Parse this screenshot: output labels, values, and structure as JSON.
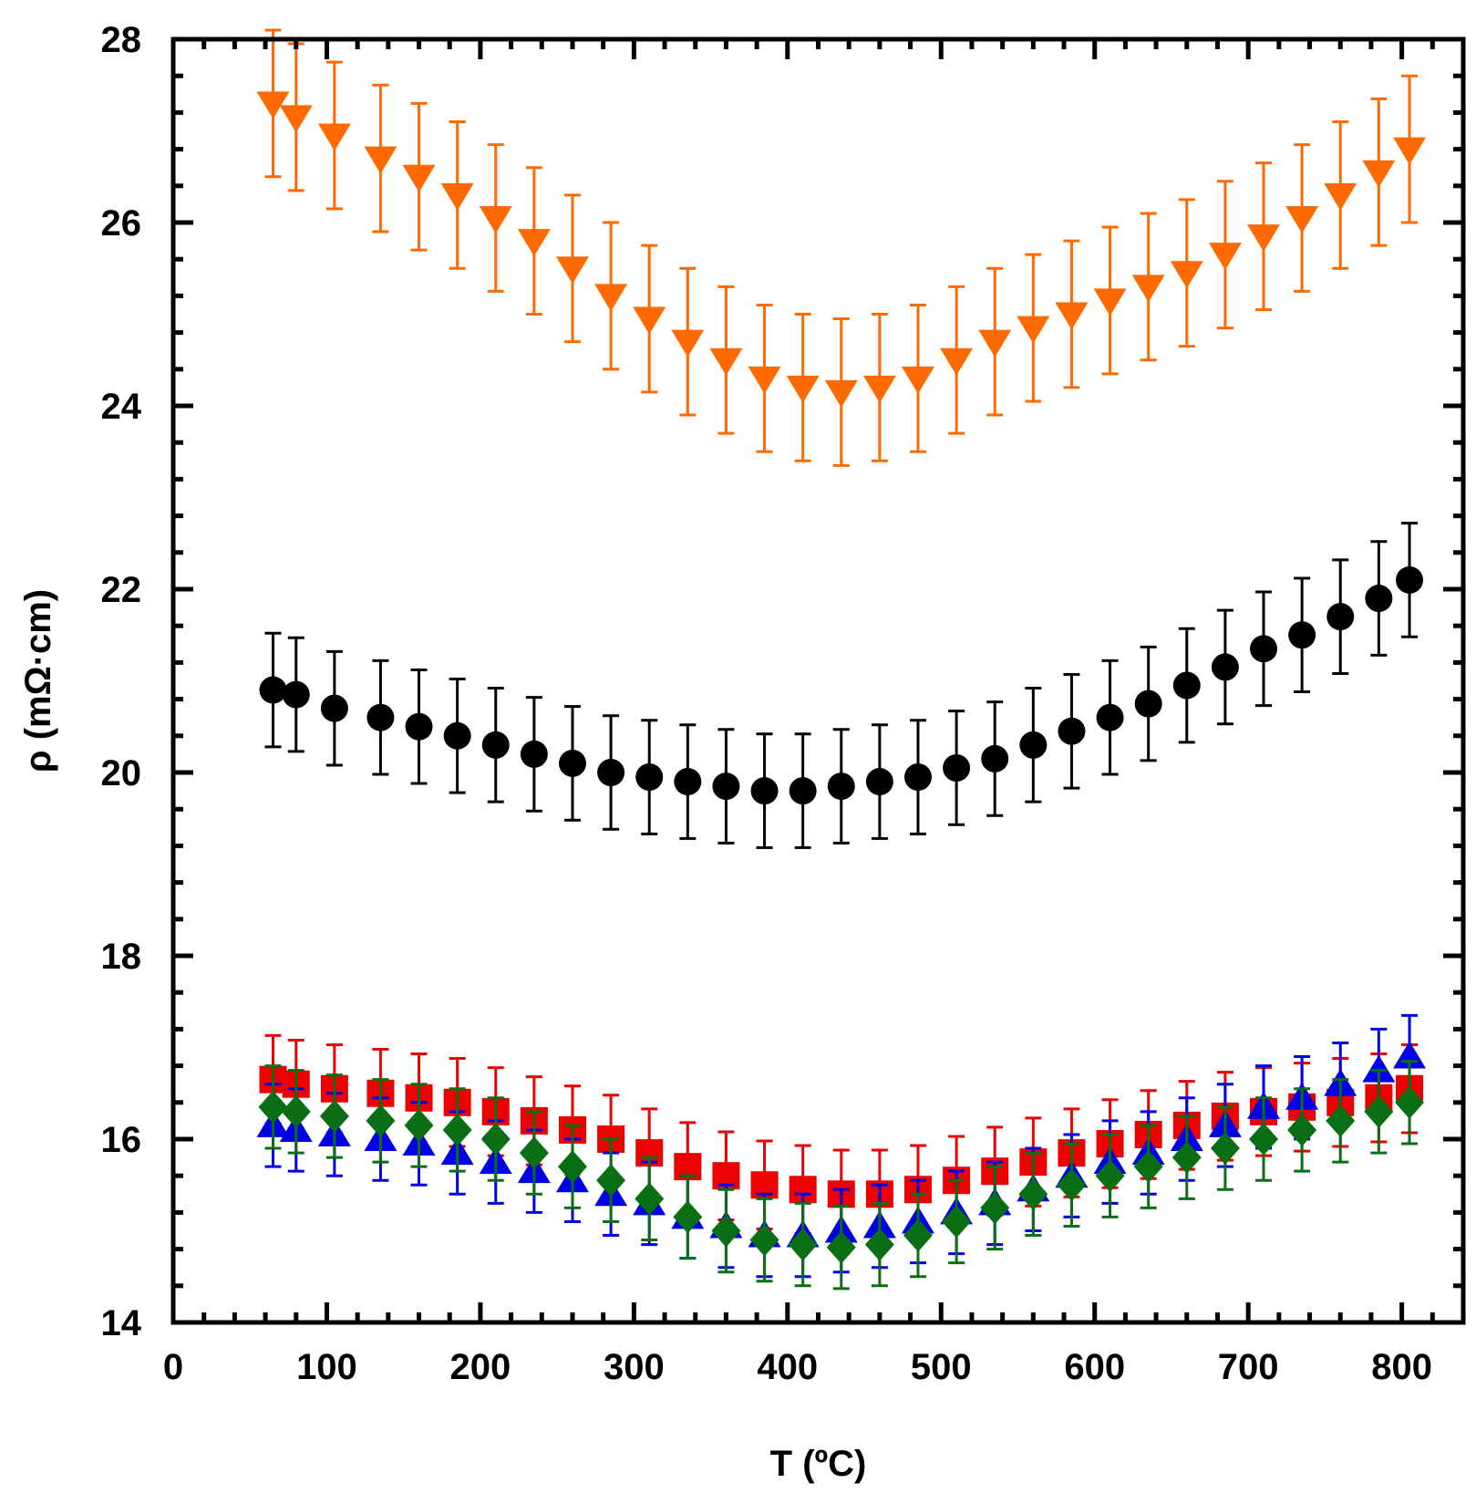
{
  "chart_data": {
    "type": "scatter",
    "title": "",
    "xlabel": "T (ºC)",
    "ylabel": "ρ (mΩ·cm)",
    "xlim": [
      0,
      840
    ],
    "ylim": [
      14,
      28
    ],
    "xticks": [
      0,
      100,
      200,
      300,
      400,
      500,
      600,
      700,
      800
    ],
    "yticks": [
      14,
      16,
      18,
      20,
      22,
      24,
      26,
      28
    ],
    "grid": false,
    "legend": "none",
    "x": [
      65,
      80,
      105,
      135,
      160,
      185,
      210,
      235,
      260,
      285,
      310,
      335,
      360,
      385,
      410,
      435,
      460,
      485,
      510,
      535,
      560,
      585,
      610,
      635,
      660,
      685,
      710,
      735,
      760,
      785,
      805
    ],
    "series": [
      {
        "color": "#ff6a00",
        "marker": "triangle-down",
        "values": [
          27.3,
          27.15,
          26.95,
          26.7,
          26.5,
          26.3,
          26.05,
          25.8,
          25.5,
          25.2,
          24.95,
          24.7,
          24.5,
          24.3,
          24.2,
          24.15,
          24.2,
          24.3,
          24.5,
          24.7,
          24.85,
          25.0,
          25.15,
          25.3,
          25.45,
          25.65,
          25.85,
          26.05,
          26.3,
          26.55,
          26.8
        ],
        "error": 0.8
      },
      {
        "color": "#000000",
        "marker": "circle",
        "values": [
          20.9,
          20.85,
          20.7,
          20.6,
          20.5,
          20.4,
          20.3,
          20.2,
          20.1,
          20.0,
          19.95,
          19.9,
          19.85,
          19.8,
          19.8,
          19.85,
          19.9,
          19.95,
          20.05,
          20.15,
          20.3,
          20.45,
          20.6,
          20.75,
          20.95,
          21.15,
          21.35,
          21.5,
          21.7,
          21.9,
          22.1
        ],
        "error": 0.62
      },
      {
        "color": "#ee0000",
        "marker": "square",
        "values": [
          16.65,
          16.6,
          16.55,
          16.5,
          16.45,
          16.4,
          16.3,
          16.2,
          16.1,
          16.0,
          15.85,
          15.7,
          15.6,
          15.5,
          15.45,
          15.4,
          15.4,
          15.45,
          15.55,
          15.65,
          15.75,
          15.85,
          15.95,
          16.05,
          16.15,
          16.25,
          16.3,
          16.35,
          16.4,
          16.45,
          16.55
        ],
        "error": 0.48
      },
      {
        "color": "#0000e6",
        "marker": "triangle-up",
        "values": [
          16.15,
          16.1,
          16.05,
          16.0,
          15.95,
          15.85,
          15.75,
          15.65,
          15.55,
          15.4,
          15.3,
          15.15,
          15.05,
          14.95,
          14.95,
          15.0,
          15.05,
          15.1,
          15.2,
          15.3,
          15.45,
          15.6,
          15.75,
          15.85,
          16.0,
          16.15,
          16.35,
          16.45,
          16.6,
          16.75,
          16.9
        ],
        "error": 0.45
      },
      {
        "color": "#0a6e14",
        "marker": "diamond",
        "values": [
          16.35,
          16.3,
          16.25,
          16.2,
          16.15,
          16.1,
          16.0,
          15.85,
          15.7,
          15.55,
          15.35,
          15.15,
          15.0,
          14.9,
          14.85,
          14.82,
          14.85,
          14.95,
          15.1,
          15.25,
          15.4,
          15.5,
          15.6,
          15.7,
          15.8,
          15.9,
          16.0,
          16.1,
          16.2,
          16.3,
          16.4
        ],
        "error": 0.45
      }
    ]
  }
}
